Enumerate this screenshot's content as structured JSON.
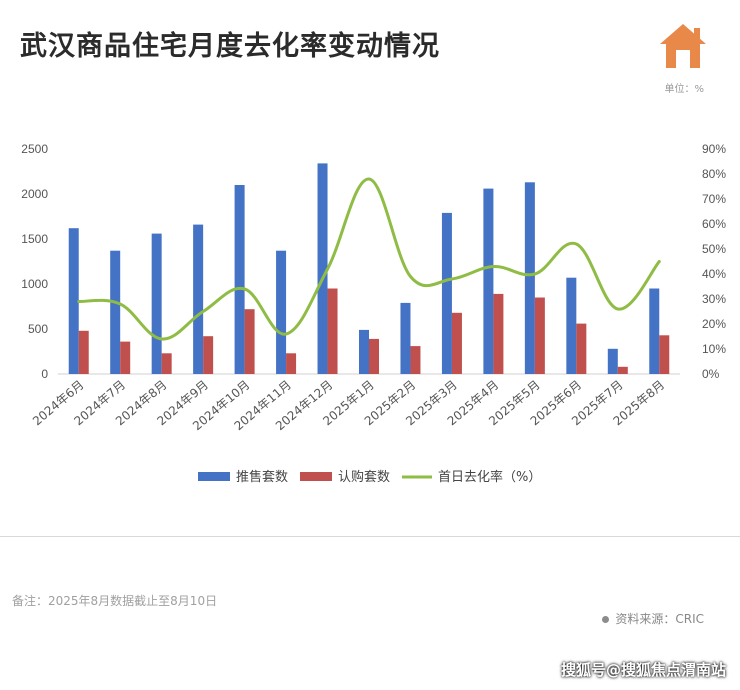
{
  "title": "武汉商品住宅月度去化率变动情况",
  "unit_label": "单位：%",
  "footnote": "备注：2025年8月数据截止至8月10日",
  "source": "资料来源：CRIC",
  "watermark": "搜狐号@搜狐焦点渭南站",
  "colors": {
    "series_supply": "#4472c4",
    "series_subscribe": "#c0504d",
    "series_rate": "#8fbc45",
    "logo": "#e8894a"
  },
  "chart_data": {
    "type": "bar",
    "categories": [
      "2024年6月",
      "2024年7月",
      "2024年8月",
      "2024年9月",
      "2024年10月",
      "2024年11月",
      "2024年12月",
      "2025年1月",
      "2025年2月",
      "2025年3月",
      "2025年4月",
      "2025年5月",
      "2025年6月",
      "2025年7月",
      "2025年8月"
    ],
    "series": [
      {
        "name": "推售套数",
        "type": "bar",
        "axis": "left",
        "values": [
          1620,
          1370,
          1560,
          1660,
          2100,
          1370,
          2340,
          490,
          790,
          1790,
          2060,
          2130,
          1070,
          280,
          950
        ]
      },
      {
        "name": "认购套数",
        "type": "bar",
        "axis": "left",
        "values": [
          480,
          360,
          230,
          420,
          720,
          230,
          950,
          390,
          310,
          680,
          890,
          850,
          560,
          80,
          430
        ]
      },
      {
        "name": "首日去化率（%）",
        "type": "line",
        "axis": "right",
        "smooth": true,
        "values": [
          29,
          28,
          14,
          25,
          34,
          16,
          42,
          78,
          39,
          38,
          43,
          40,
          52,
          26,
          45
        ]
      }
    ],
    "left_axis": {
      "min": 0,
      "max": 2500,
      "ticks": [
        "0",
        "500",
        "1000",
        "1500",
        "2000",
        "2500"
      ]
    },
    "right_axis": {
      "min": 0,
      "max": 90,
      "ticks": [
        "0%",
        "10%",
        "20%",
        "30%",
        "40%",
        "50%",
        "60%",
        "70%",
        "80%",
        "90%"
      ]
    },
    "legend_position": "bottom",
    "grid": false
  }
}
